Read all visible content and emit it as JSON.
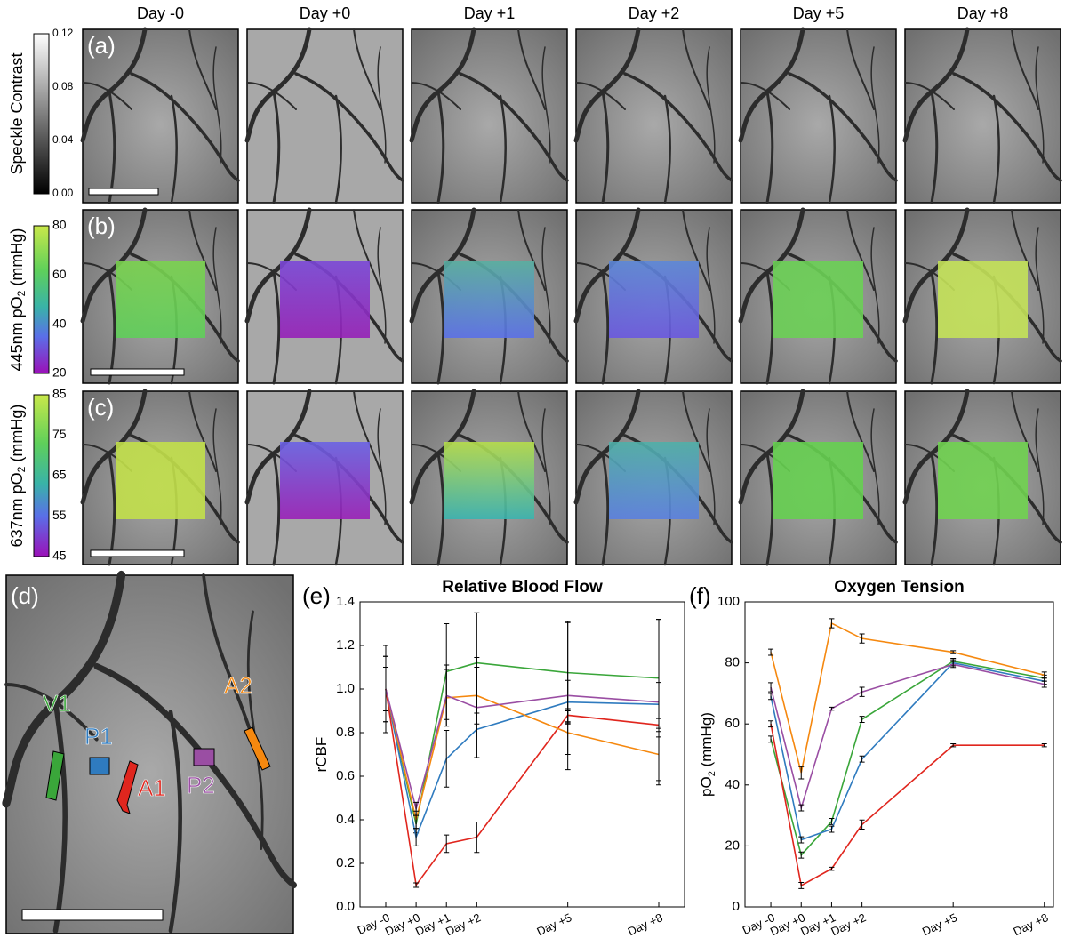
{
  "figure": {
    "columns": [
      "Day -0",
      "Day +0",
      "Day +1",
      "Day +2",
      "Day +5",
      "Day +8"
    ],
    "panels": [
      "(a)",
      "(b)",
      "(c)",
      "(d)",
      "(e)",
      "(f)"
    ],
    "colorbars": [
      {
        "label": [
          "Speckle Contrast"
        ],
        "ticks": [
          "0.12",
          "0.08",
          "0.04",
          "0.00"
        ]
      },
      {
        "label": [
          "445nm pO",
          "2",
          " (mmHg)"
        ],
        "ticks": [
          "80",
          "60",
          "40",
          "20"
        ]
      },
      {
        "label": [
          "637nm pO",
          "2",
          " (mmHg)"
        ],
        "ticks": [
          "85",
          "75",
          "65",
          "55",
          "45"
        ]
      }
    ]
  },
  "chart_data": [
    {
      "type": "line",
      "title": "Relative Blood Flow",
      "ylabel": [
        "rCBF"
      ],
      "x": [
        -1,
        0,
        1,
        2,
        5,
        8
      ],
      "xlim": [
        -1.85,
        8.85
      ],
      "xticks": [
        {
          "value": -1,
          "label": "Day -0"
        },
        {
          "value": 0,
          "label": "Day +0"
        },
        {
          "value": 1,
          "label": "Day +1"
        },
        {
          "value": 2,
          "label": "Day +2"
        },
        {
          "value": 5,
          "label": "Day +5"
        },
        {
          "value": 8,
          "label": "Day +8"
        }
      ],
      "ylim": [
        0,
        1.4
      ],
      "yticks": [
        {
          "value": 0,
          "label": "0.0"
        },
        0.2,
        0.4,
        0.6,
        0.8,
        {
          "value": 1,
          "label": "1.0"
        },
        1.2,
        1.4
      ],
      "series": [
        {
          "name": "V1",
          "color": "#3aa63a",
          "values": [
            1.0,
            0.38,
            1.08,
            1.12,
            1.075,
            1.05
          ],
          "errors": [
            0.15,
            0.04,
            0.22,
            0.23,
            0.23,
            0.27
          ]
        },
        {
          "name": "P1",
          "color": "#2f7bbf",
          "values": [
            1.0,
            0.32,
            0.68,
            0.815,
            0.94,
            0.93
          ],
          "errors": [
            0.15,
            0.04,
            0.13,
            0.13,
            0.1,
            0.1
          ]
        },
        {
          "name": "A1",
          "color": "#e0261e",
          "values": [
            1.0,
            0.1,
            0.29,
            0.32,
            0.88,
            0.835
          ],
          "errors": [
            0.1,
            0.01,
            0.04,
            0.07,
            0.03,
            0.03
          ]
        },
        {
          "name": "A2",
          "color": "#f5880f",
          "values": [
            1.0,
            0.4,
            0.96,
            0.97,
            0.8,
            0.7
          ],
          "errors": [
            0.1,
            0.04,
            0.13,
            0.13,
            0.1,
            0.12
          ]
        },
        {
          "name": "P2",
          "color": "#9a4ea3",
          "values": [
            1.0,
            0.45,
            0.97,
            0.915,
            0.97,
            0.94
          ],
          "errors": [
            0.2,
            0.03,
            0.14,
            0.23,
            0.34,
            0.38
          ]
        }
      ]
    },
    {
      "type": "line",
      "title": "Oxygen Tension",
      "ylabel": [
        "pO",
        "2",
        " (mmHg)"
      ],
      "x": [
        -1,
        0,
        1,
        2,
        5,
        8
      ],
      "xlim": [
        -1.85,
        8.3
      ],
      "xticks": [
        {
          "value": -1,
          "label": "Day -0"
        },
        {
          "value": 0,
          "label": "Day +0"
        },
        {
          "value": 1,
          "label": "Day +1"
        },
        {
          "value": 2,
          "label": "Day +2"
        },
        {
          "value": 5,
          "label": "Day +5"
        },
        {
          "value": 8,
          "label": "Day +8"
        }
      ],
      "ylim": [
        0,
        100
      ],
      "yticks": [
        0,
        20,
        40,
        60,
        80,
        100
      ],
      "series": [
        {
          "color": "#3aa63a",
          "values": [
            55,
            17,
            28,
            61.5,
            80.5,
            75
          ],
          "errors": [
            1,
            1,
            1,
            1,
            1,
            1
          ]
        },
        {
          "color": "#2f7bbf",
          "values": [
            69,
            22,
            25.5,
            48.5,
            80,
            74
          ],
          "errors": [
            1,
            1,
            1,
            1,
            1,
            1
          ]
        },
        {
          "color": "#e0261e",
          "values": [
            60,
            7,
            12.5,
            27,
            53,
            53
          ],
          "errors": [
            1,
            1,
            0.5,
            1.5,
            0.5,
            0.5
          ]
        },
        {
          "color": "#f5880f",
          "values": [
            83.5,
            44,
            93,
            88,
            83.5,
            76
          ],
          "errors": [
            1,
            2,
            1.5,
            1.5,
            0.5,
            1
          ]
        },
        {
          "color": "#9a4ea3",
          "values": [
            72,
            32.5,
            65,
            70.5,
            79.5,
            73
          ],
          "errors": [
            1.5,
            1,
            0.5,
            1.5,
            1,
            1
          ]
        }
      ]
    }
  ]
}
